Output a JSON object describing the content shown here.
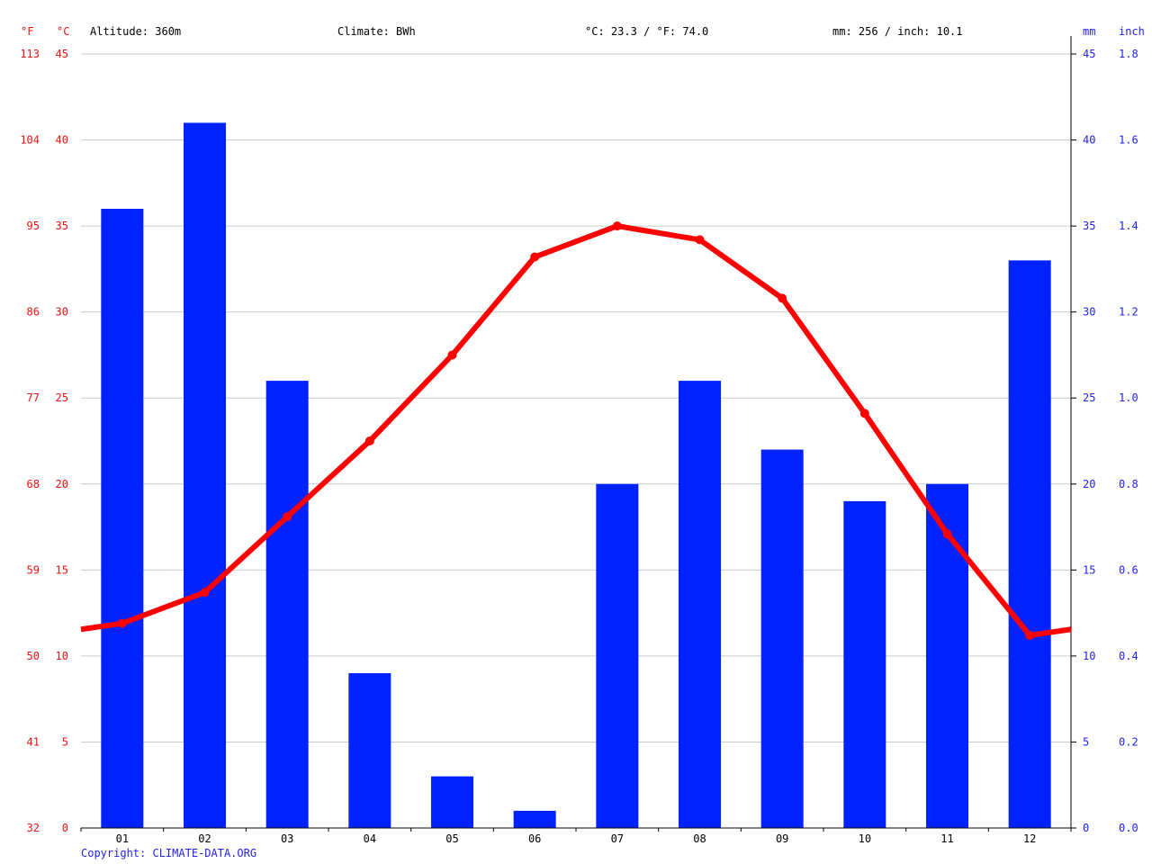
{
  "header": {
    "unit_f": "°F",
    "unit_c": "°C",
    "altitude": "Altitude: 360m",
    "climate": "Climate: BWh",
    "temp_summary": "°C: 23.3 / °F: 74.0",
    "precip_summary": "mm: 256 / inch: 10.1",
    "unit_mm": "mm",
    "unit_inch": "inch"
  },
  "copyright": "Copyright: CLIMATE-DATA.ORG",
  "colors": {
    "temperature": "#ff0000",
    "precipitation": "#0022ff",
    "grid": "#cccccc",
    "temp_axis": "#ee1111",
    "precip_axis": "#2222ee"
  },
  "chart_data": {
    "type": "bar+line",
    "categories": [
      "01",
      "02",
      "03",
      "04",
      "05",
      "06",
      "07",
      "08",
      "09",
      "10",
      "11",
      "12"
    ],
    "series": [
      {
        "type": "bar",
        "values": [
          36,
          41,
          26,
          9,
          3,
          1,
          20,
          26,
          22,
          19,
          20,
          33
        ]
      },
      {
        "type": "line",
        "values": [
          11.9,
          13.7,
          18.1,
          22.5,
          27.5,
          33.2,
          35.0,
          34.2,
          30.8,
          24.1,
          17.1,
          11.2
        ]
      }
    ],
    "ylim_c": [
      0,
      45
    ],
    "ylim_mm": [
      0,
      45
    ],
    "grid": true,
    "axes": {
      "fahrenheit_ticks": [
        "32",
        "41",
        "50",
        "59",
        "68",
        "77",
        "86",
        "95",
        "104",
        "113"
      ],
      "celsius_ticks": [
        "0",
        "5",
        "10",
        "15",
        "20",
        "25",
        "30",
        "35",
        "40",
        "45"
      ],
      "mm_ticks": [
        "0",
        "5",
        "10",
        "15",
        "20",
        "25",
        "30",
        "35",
        "40",
        "45"
      ],
      "inch_ticks": [
        "0.0",
        "0.2",
        "0.4",
        "0.6",
        "0.8",
        "1.0",
        "1.2",
        "1.4",
        "1.6",
        "1.8"
      ]
    }
  }
}
